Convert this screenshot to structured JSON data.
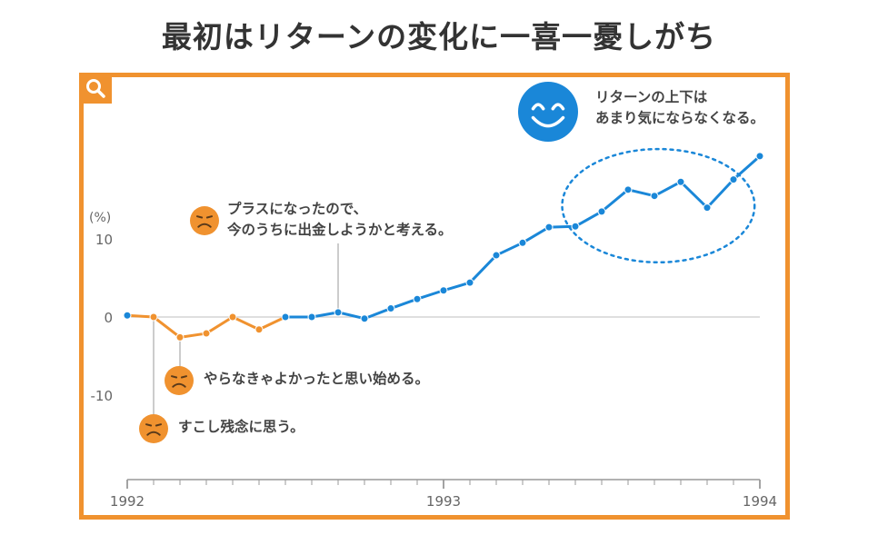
{
  "title": "最初はリターンの変化に一喜一憂しがち",
  "icons": {
    "zoom": "magnifier-icon",
    "sad": "sad-face-icon",
    "happy": "happy-face-icon"
  },
  "colors": {
    "frame": "#f0922f",
    "early_series": "#f0922f",
    "later_series": "#1a87d8",
    "grid": "#cccccc",
    "axis": "#999999"
  },
  "annotations": {
    "happy": {
      "line1": "リターンの上下は",
      "line2": "あまり気にならなくなる。"
    },
    "plus": {
      "line1": "プラスになったので、",
      "line2": "今のうちに出金しようかと考える。"
    },
    "regret": "やらなきゃよかったと思い始める。",
    "sorry": "すこし残念に思う。"
  },
  "chart_data": {
    "type": "line",
    "title": "最初はリターンの変化に一喜一憂しがち",
    "ylabel": "(%)",
    "xlabel": "",
    "ylim": [
      -20,
      20
    ],
    "yticks": [
      {
        "value": 10,
        "label": "10"
      },
      {
        "value": 0,
        "label": "0"
      },
      {
        "value": -10,
        "label": "-10"
      }
    ],
    "xticks": [
      {
        "value": 0,
        "label": "1992"
      },
      {
        "value": 12,
        "label": "1993"
      },
      {
        "value": 24,
        "label": "1994"
      }
    ],
    "x": [
      0,
      1,
      2,
      3,
      4,
      5,
      6,
      7,
      8,
      9,
      10,
      11,
      12,
      13,
      14,
      15,
      16,
      17,
      18,
      19,
      20,
      21,
      22,
      23,
      24
    ],
    "values": [
      0.2,
      0,
      -2.6,
      -2.1,
      0,
      -1.6,
      0,
      0,
      0.6,
      -0.2,
      1.1,
      2.3,
      3.4,
      4.4,
      7.9,
      9.5,
      11.5,
      11.6,
      13.5,
      16.3,
      15.5,
      17.3,
      14.0,
      17.6,
      20.6
    ],
    "segments": [
      {
        "from": 0,
        "to": 6,
        "color": "#f0922f"
      },
      {
        "from": 6,
        "to": 24,
        "color": "#1a87d8"
      }
    ],
    "highlight_ellipse": {
      "x_range": [
        16.5,
        23.8
      ],
      "y_range": [
        7,
        21.5
      ]
    },
    "grid": false,
    "legend": "none"
  }
}
